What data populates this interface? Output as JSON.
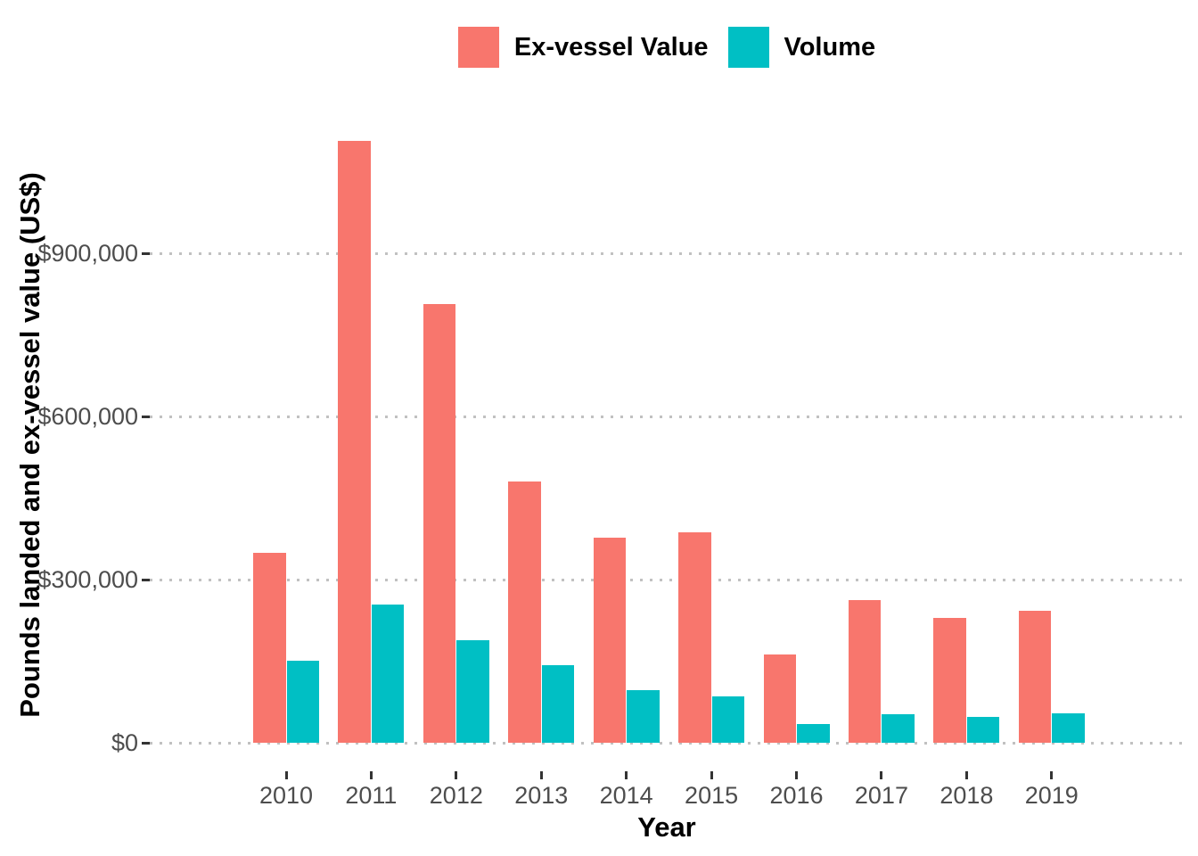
{
  "legend": {
    "position": "top",
    "items": [
      {
        "label": "Ex-vessel Value",
        "color": "#F8766D"
      },
      {
        "label": "Volume",
        "color": "#00BFC4"
      }
    ]
  },
  "chart_data": {
    "type": "bar",
    "bar_layout": "dodged",
    "title": "",
    "xlabel": "Year",
    "ylabel": "Pounds landed and ex-vessel value (US$)",
    "categories": [
      "2010",
      "2011",
      "2012",
      "2013",
      "2014",
      "2015",
      "2016",
      "2017",
      "2018",
      "2019"
    ],
    "series": [
      {
        "name": "Ex-vessel Value",
        "color": "#F8766D",
        "values": [
          349000,
          1106000,
          807000,
          480000,
          377000,
          387000,
          163000,
          262000,
          230000,
          243000
        ]
      },
      {
        "name": "Volume",
        "color": "#00BFC4",
        "values": [
          150000,
          254000,
          188000,
          143000,
          97000,
          85000,
          34000,
          52000,
          48000,
          54000
        ]
      }
    ],
    "ylim": [
      0,
      1160000
    ],
    "yticks": [
      {
        "value": 0,
        "label": "$0"
      },
      {
        "value": 300000,
        "label": "$300,000"
      },
      {
        "value": 600000,
        "label": "$600,000"
      },
      {
        "value": 900000,
        "label": "$900,000"
      }
    ],
    "grid": "horizontal-dotted",
    "legend_position": "top"
  },
  "colors": {
    "background": "#ffffff",
    "axis_text": "#4d4d4d",
    "axis_title": "#000000",
    "gridline": "#c1c1c1",
    "tick_mark": "#333333"
  }
}
